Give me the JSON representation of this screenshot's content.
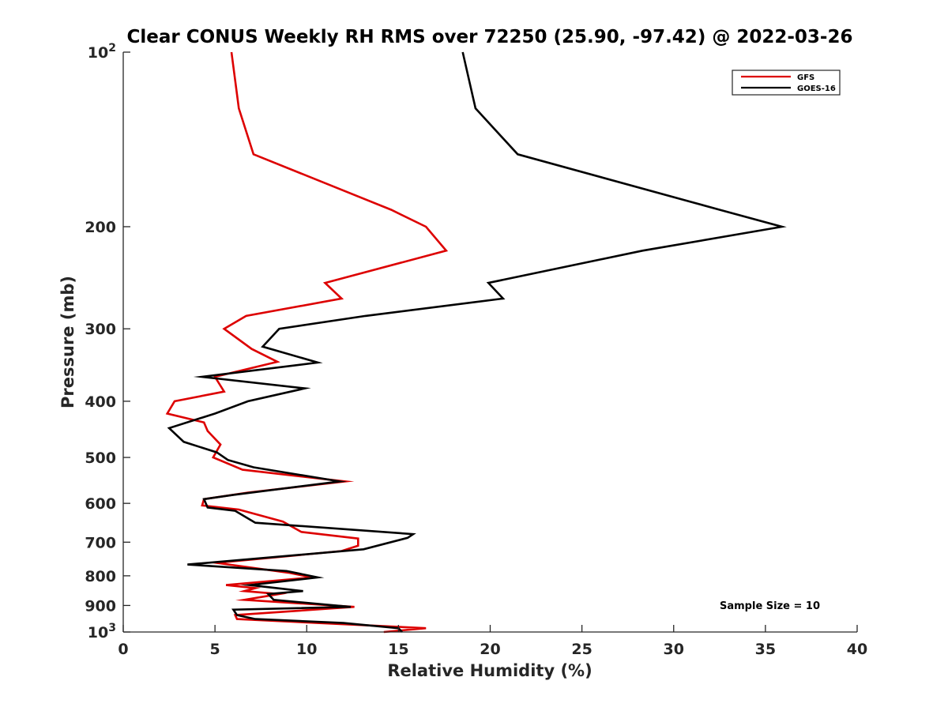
{
  "chart_data": {
    "type": "line",
    "title": "Clear CONUS Weekly RH RMS over 72250 (25.90, -97.42) @ 2022-03-26",
    "xlabel": "Relative Humidity (%)",
    "ylabel": "Pressure (mb)",
    "xlim": [
      0,
      40
    ],
    "ylim": [
      100,
      1000
    ],
    "y_scale": "log",
    "y_reversed": true,
    "x_ticks": [
      0,
      5,
      10,
      15,
      20,
      25,
      30,
      35,
      40
    ],
    "x_tick_labels": [
      "0",
      "5",
      "10",
      "15",
      "20",
      "25",
      "30",
      "35",
      "40"
    ],
    "y_ticks": [
      100,
      200,
      300,
      400,
      500,
      600,
      700,
      800,
      900,
      1000
    ],
    "y_tick_labels": [
      "10²",
      "200",
      "300",
      "400",
      "500",
      "600",
      "700",
      "800",
      "900",
      "10³"
    ],
    "grid": false,
    "legend_position": "top-right",
    "annotation": "Sample Size = 10",
    "series": [
      {
        "name": "GFS",
        "color": "#dd0000",
        "points": [
          [
            5.9,
            100
          ],
          [
            6.3,
            125
          ],
          [
            7.1,
            150
          ],
          [
            14.6,
            187
          ],
          [
            16.5,
            200
          ],
          [
            17.6,
            220
          ],
          [
            11.0,
            250
          ],
          [
            11.9,
            266
          ],
          [
            6.7,
            285
          ],
          [
            5.5,
            300
          ],
          [
            7.0,
            325
          ],
          [
            8.4,
            342
          ],
          [
            5.0,
            363
          ],
          [
            5.5,
            385
          ],
          [
            2.8,
            400
          ],
          [
            2.4,
            420
          ],
          [
            4.4,
            435
          ],
          [
            4.6,
            450
          ],
          [
            5.3,
            475
          ],
          [
            4.9,
            500
          ],
          [
            6.5,
            525
          ],
          [
            12.1,
            550
          ],
          [
            6.8,
            575
          ],
          [
            4.4,
            590
          ],
          [
            4.3,
            605
          ],
          [
            6.3,
            615
          ],
          [
            8.7,
            645
          ],
          [
            9.7,
            672
          ],
          [
            12.8,
            690
          ],
          [
            12.8,
            710
          ],
          [
            11.9,
            725
          ],
          [
            5.1,
            760
          ],
          [
            9.0,
            790
          ],
          [
            10.3,
            805
          ],
          [
            5.6,
            830
          ],
          [
            7.2,
            840
          ],
          [
            6.6,
            850
          ],
          [
            8.5,
            860
          ],
          [
            6.6,
            880
          ],
          [
            12.6,
            905
          ],
          [
            6.1,
            935
          ],
          [
            6.2,
            950
          ],
          [
            16.5,
            985
          ],
          [
            14.2,
            1000
          ]
        ]
      },
      {
        "name": "GOES-16",
        "color": "#000000",
        "points": [
          [
            18.5,
            100
          ],
          [
            19.2,
            125
          ],
          [
            21.5,
            150
          ],
          [
            32.5,
            187
          ],
          [
            35.9,
            200
          ],
          [
            28.3,
            220
          ],
          [
            19.9,
            250
          ],
          [
            20.7,
            266
          ],
          [
            13.2,
            285
          ],
          [
            8.5,
            300
          ],
          [
            7.6,
            322
          ],
          [
            10.6,
            343
          ],
          [
            4.3,
            363
          ],
          [
            9.9,
            380
          ],
          [
            6.8,
            400
          ],
          [
            5.0,
            420
          ],
          [
            2.5,
            445
          ],
          [
            3.3,
            470
          ],
          [
            5.1,
            490
          ],
          [
            5.7,
            505
          ],
          [
            7.1,
            520
          ],
          [
            11.8,
            550
          ],
          [
            6.0,
            580
          ],
          [
            4.4,
            590
          ],
          [
            4.6,
            610
          ],
          [
            6.1,
            618
          ],
          [
            7.2,
            648
          ],
          [
            15.8,
            678
          ],
          [
            15.5,
            688
          ],
          [
            13.1,
            720
          ],
          [
            3.5,
            765
          ],
          [
            8.9,
            785
          ],
          [
            10.6,
            805
          ],
          [
            6.9,
            830
          ],
          [
            9.8,
            850
          ],
          [
            7.9,
            860
          ],
          [
            8.2,
            880
          ],
          [
            12.4,
            905
          ],
          [
            6.0,
            915
          ],
          [
            6.2,
            935
          ],
          [
            7.2,
            950
          ],
          [
            12.0,
            965
          ],
          [
            15.0,
            985
          ],
          [
            15.2,
            1000
          ]
        ]
      }
    ]
  }
}
